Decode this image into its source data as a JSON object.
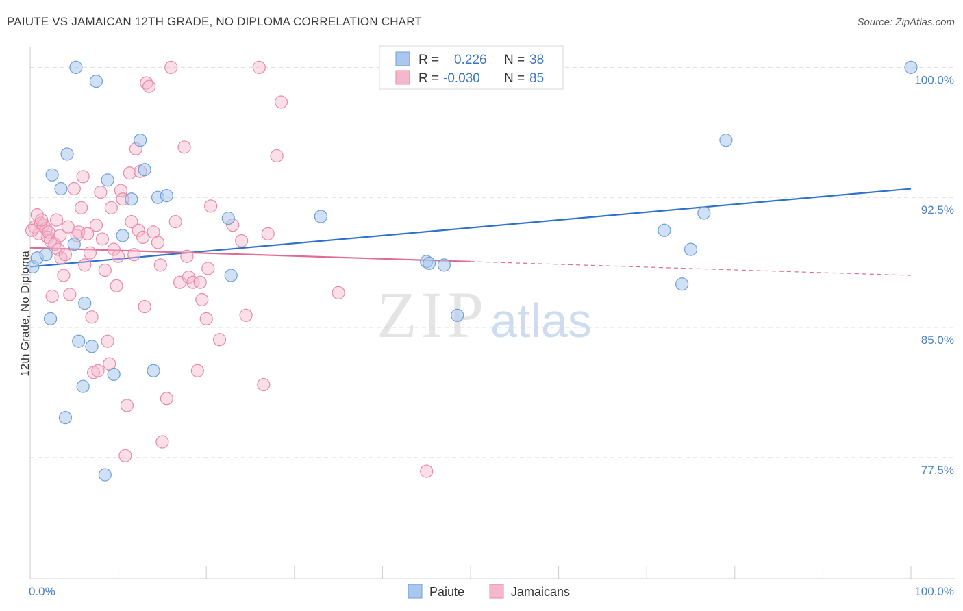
{
  "header": {
    "title": "PAIUTE VS JAMAICAN 12TH GRADE, NO DIPLOMA CORRELATION CHART",
    "source": "Source: ZipAtlas.com"
  },
  "watermark": {
    "zip": "ZIP",
    "atlas": "atlas"
  },
  "legend": {
    "rows": [
      {
        "r_label": "R =",
        "r_value": "0.226",
        "n_label": "N =",
        "n_value": "38"
      },
      {
        "r_label": "R =",
        "r_value": "-0.030",
        "n_label": "N =",
        "n_value": "85"
      }
    ]
  },
  "bottom_legend": {
    "paiute": "Paiute",
    "jamaicans": "Jamaicans"
  },
  "colors": {
    "paiute_fill": "#aac8ee",
    "paiute_stroke": "#6e9fd8",
    "paiute_line": "#2f72c9",
    "jamaican_fill": "#f5b8cb",
    "jamaican_stroke": "#e98aa8",
    "jamaican_line": "#e06b95",
    "tick_text": "#4a7fc1",
    "grid": "#dddddd"
  },
  "chart_data": {
    "type": "scatter",
    "title": "PAIUTE VS JAMAICAN 12TH GRADE, NO DIPLOMA CORRELATION CHART",
    "xlabel": "",
    "ylabel": "12th Grade, No Diploma",
    "xlim": [
      0,
      100
    ],
    "ylim": [
      70.5,
      101.2
    ],
    "x_ticks_labels": [
      "0.0%",
      "100.0%"
    ],
    "y_ticks": [
      77.5,
      85.0,
      92.5,
      100.0
    ],
    "y_tick_labels": [
      "77.5%",
      "85.0%",
      "92.5%",
      "100.0%"
    ],
    "grid": true,
    "legend_position": "top-center",
    "series": [
      {
        "name": "Paiute",
        "r": 0.226,
        "n": 38,
        "trend": {
          "x": [
            0,
            100
          ],
          "y": [
            88.5,
            93.0
          ]
        },
        "points": [
          [
            0.3,
            88.5
          ],
          [
            0.8,
            89.0
          ],
          [
            1.8,
            89.2
          ],
          [
            2.3,
            85.5
          ],
          [
            2.5,
            93.8
          ],
          [
            3.5,
            93.0
          ],
          [
            4.0,
            79.8
          ],
          [
            4.2,
            95.0
          ],
          [
            5.0,
            89.8
          ],
          [
            5.2,
            100.0
          ],
          [
            5.5,
            84.2
          ],
          [
            6.0,
            81.6
          ],
          [
            6.2,
            86.4
          ],
          [
            7.0,
            83.9
          ],
          [
            7.5,
            99.2
          ],
          [
            8.5,
            76.5
          ],
          [
            8.8,
            93.5
          ],
          [
            9.5,
            82.3
          ],
          [
            10.5,
            90.3
          ],
          [
            11.5,
            92.4
          ],
          [
            12.5,
            95.8
          ],
          [
            13.0,
            94.1
          ],
          [
            14.0,
            82.5
          ],
          [
            14.5,
            92.5
          ],
          [
            15.5,
            92.6
          ],
          [
            22.5,
            91.3
          ],
          [
            22.8,
            88.0
          ],
          [
            33.0,
            91.4
          ],
          [
            45.0,
            88.8
          ],
          [
            45.3,
            88.7
          ],
          [
            47.0,
            88.6
          ],
          [
            48.5,
            85.7
          ],
          [
            72.0,
            90.6
          ],
          [
            74.0,
            87.5
          ],
          [
            75.0,
            89.5
          ],
          [
            76.5,
            91.6
          ],
          [
            79.0,
            95.8
          ],
          [
            100.0,
            100.0
          ]
        ]
      },
      {
        "name": "Jamaicans",
        "r": -0.03,
        "n": 85,
        "trend": {
          "x": [
            0,
            50
          ],
          "y": [
            89.6,
            88.8
          ]
        },
        "trend_extended": {
          "x": [
            50,
            100
          ],
          "y": [
            88.8,
            88.0
          ]
        },
        "points": [
          [
            0.5,
            90.8
          ],
          [
            0.8,
            91.5
          ],
          [
            1.0,
            90.4
          ],
          [
            1.2,
            91.0
          ],
          [
            1.5,
            90.9
          ],
          [
            1.8,
            90.7
          ],
          [
            2.0,
            90.2
          ],
          [
            2.3,
            90.0
          ],
          [
            2.5,
            86.8
          ],
          [
            2.8,
            89.8
          ],
          [
            3.0,
            91.2
          ],
          [
            3.2,
            89.5
          ],
          [
            3.5,
            89.0
          ],
          [
            3.8,
            88.0
          ],
          [
            4.0,
            89.2
          ],
          [
            4.3,
            90.8
          ],
          [
            4.5,
            86.9
          ],
          [
            5.0,
            93.0
          ],
          [
            5.3,
            90.3
          ],
          [
            5.5,
            90.5
          ],
          [
            5.8,
            91.9
          ],
          [
            6.0,
            93.7
          ],
          [
            6.2,
            88.6
          ],
          [
            6.5,
            90.4
          ],
          [
            6.8,
            89.3
          ],
          [
            7.0,
            85.6
          ],
          [
            7.2,
            82.4
          ],
          [
            7.5,
            90.9
          ],
          [
            7.7,
            82.5
          ],
          [
            8.0,
            92.8
          ],
          [
            8.2,
            90.1
          ],
          [
            8.5,
            88.3
          ],
          [
            8.8,
            84.2
          ],
          [
            9.0,
            82.9
          ],
          [
            9.2,
            91.9
          ],
          [
            9.5,
            89.5
          ],
          [
            9.8,
            87.4
          ],
          [
            10.0,
            89.1
          ],
          [
            10.3,
            92.9
          ],
          [
            10.5,
            92.4
          ],
          [
            10.8,
            77.6
          ],
          [
            11.0,
            80.5
          ],
          [
            11.3,
            93.9
          ],
          [
            11.5,
            91.1
          ],
          [
            11.8,
            89.2
          ],
          [
            12.0,
            95.3
          ],
          [
            12.3,
            90.6
          ],
          [
            12.5,
            94.0
          ],
          [
            12.8,
            90.2
          ],
          [
            13.0,
            86.2
          ],
          [
            13.2,
            99.1
          ],
          [
            13.5,
            98.9
          ],
          [
            14.0,
            90.5
          ],
          [
            14.5,
            89.9
          ],
          [
            14.8,
            88.6
          ],
          [
            15.0,
            78.4
          ],
          [
            15.5,
            80.9
          ],
          [
            16.0,
            100.0
          ],
          [
            16.5,
            91.1
          ],
          [
            17.0,
            87.6
          ],
          [
            17.5,
            95.4
          ],
          [
            17.8,
            89.1
          ],
          [
            18.0,
            87.9
          ],
          [
            18.5,
            87.6
          ],
          [
            19.0,
            82.5
          ],
          [
            19.3,
            87.6
          ],
          [
            19.5,
            86.6
          ],
          [
            20.0,
            85.5
          ],
          [
            20.2,
            88.4
          ],
          [
            20.5,
            92.0
          ],
          [
            21.5,
            84.3
          ],
          [
            23.0,
            90.9
          ],
          [
            24.0,
            90.0
          ],
          [
            24.5,
            85.7
          ],
          [
            26.0,
            100.0
          ],
          [
            26.5,
            81.7
          ],
          [
            27.0,
            90.4
          ],
          [
            28.0,
            94.9
          ],
          [
            28.5,
            98.0
          ],
          [
            35.0,
            87.0
          ],
          [
            45.0,
            76.7
          ],
          [
            0.2,
            90.6
          ],
          [
            1.3,
            91.2
          ],
          [
            2.1,
            90.5
          ],
          [
            3.4,
            90.3
          ]
        ]
      }
    ]
  }
}
